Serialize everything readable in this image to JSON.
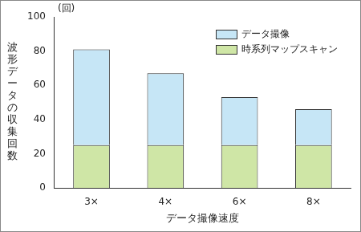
{
  "chart_data": {
    "type": "bar",
    "stacked": true,
    "x_label": "データ撮像速度",
    "y_label": "波形データの収集回数",
    "annotations": [
      "(回)"
    ],
    "categories": [
      "3×",
      "4×",
      "6×",
      "8×"
    ],
    "series": [
      {
        "name": "時系列マップスキャン",
        "color": "#cfe6a6",
        "values": [
          25,
          25,
          25,
          25
        ]
      },
      {
        "name": "データ撮像",
        "color": "#c6e6f6",
        "values": [
          56,
          42,
          28,
          21
        ]
      }
    ],
    "ylim": [
      0,
      100
    ],
    "yticks": [
      0,
      20,
      40,
      60,
      80,
      100
    ],
    "grid": false,
    "legend": "upper right"
  }
}
